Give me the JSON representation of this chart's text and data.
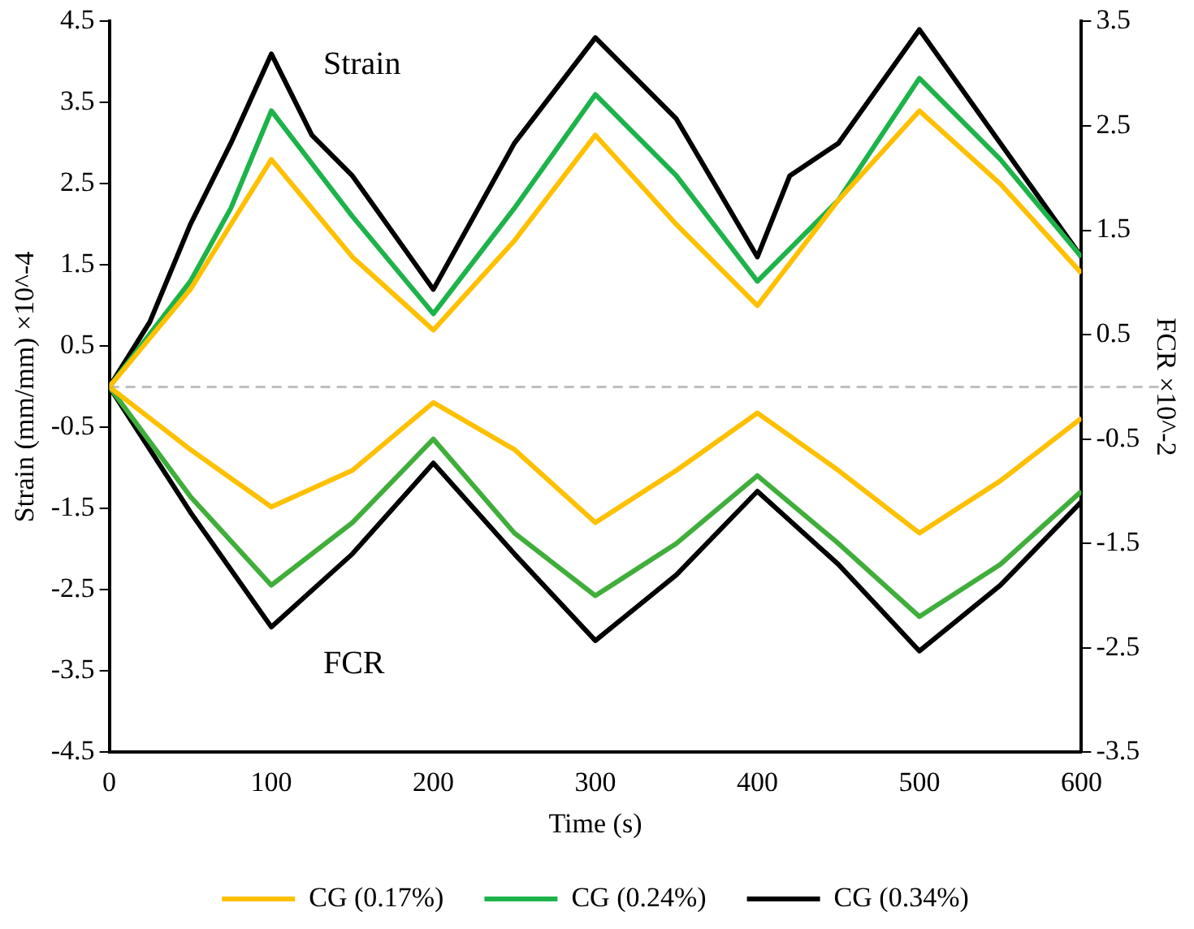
{
  "chart_data": {
    "type": "line",
    "xlabel": "Time (s)",
    "ylabel": "Strain (mm/mm) ×10^-4",
    "y2label": "FCR ×10^-2",
    "xlim": [
      0,
      600
    ],
    "xticks": [
      0,
      100,
      200,
      300,
      400,
      500,
      600
    ],
    "ylim": [
      -4.5,
      4.5
    ],
    "yticks": [
      -4.5,
      -3.5,
      -2.5,
      -1.5,
      -0.5,
      0.5,
      1.5,
      2.5,
      3.5,
      4.5
    ],
    "y2lim": [
      -3.5,
      3.5
    ],
    "y2ticks": [
      -3.5,
      -2.5,
      -1.5,
      -0.5,
      0.5,
      1.5,
      2.5,
      3.5
    ],
    "grid": false,
    "legend": "bottom",
    "marker": "none",
    "line_style": "solid",
    "series": [
      {
        "name": "CG (0.17%)",
        "color": "#ffc000",
        "x": [
          0,
          25,
          50,
          100,
          150,
          200,
          250,
          300,
          350,
          400,
          450,
          500,
          550,
          600
        ],
        "values": [
          0,
          0.6,
          1.2,
          2.8,
          1.6,
          0.7,
          1.8,
          3.1,
          2.0,
          1.0,
          2.3,
          3.4,
          2.5,
          1.4
        ]
      },
      {
        "name": "CG (0.24%)",
        "color": "#1db34a",
        "x": [
          0,
          50,
          75,
          100,
          150,
          200,
          250,
          300,
          350,
          400,
          450,
          500,
          550,
          600
        ],
        "values": [
          0,
          1.3,
          2.2,
          3.4,
          2.1,
          0.9,
          2.2,
          3.6,
          2.6,
          1.3,
          2.3,
          3.8,
          2.8,
          1.6
        ]
      },
      {
        "name": "CG (0.34%)",
        "color": "#000000",
        "x": [
          0,
          25,
          50,
          75,
          100,
          125,
          150,
          200,
          250,
          300,
          350,
          400,
          420,
          450,
          500,
          550,
          600
        ],
        "values": [
          0,
          0.8,
          2.0,
          3.0,
          4.1,
          3.1,
          2.6,
          1.2,
          3.0,
          4.3,
          3.3,
          1.6,
          2.6,
          3.0,
          4.4,
          3.0,
          1.6
        ]
      },
      {
        "color": "#ffc000",
        "axis": "y2",
        "x": [
          0,
          50,
          100,
          150,
          200,
          250,
          300,
          350,
          400,
          450,
          500,
          550,
          600
        ],
        "values": [
          0,
          -0.6,
          -1.15,
          -0.8,
          -0.15,
          -0.6,
          -1.3,
          -0.8,
          -0.25,
          -0.8,
          -1.4,
          -0.9,
          -0.3
        ]
      },
      {
        "color": "#3fae3a",
        "axis": "y2",
        "x": [
          0,
          50,
          100,
          150,
          200,
          250,
          300,
          350,
          400,
          450,
          500,
          550,
          600
        ],
        "values": [
          0,
          -1.05,
          -1.9,
          -1.3,
          -0.5,
          -1.4,
          -2.0,
          -1.5,
          -0.85,
          -1.5,
          -2.2,
          -1.7,
          -1.0
        ]
      },
      {
        "color": "#000000",
        "axis": "y2",
        "x": [
          0,
          50,
          100,
          150,
          200,
          250,
          300,
          350,
          400,
          450,
          500,
          550,
          600
        ],
        "values": [
          0,
          -1.2,
          -2.3,
          -1.6,
          -0.73,
          -1.6,
          -2.43,
          -1.8,
          -1.0,
          -1.7,
          -2.53,
          -1.9,
          -1.1
        ]
      }
    ],
    "ref_lines": [
      {
        "axis": "y",
        "value": 0,
        "color": "#bfbfbf",
        "line_style": "dashed"
      }
    ],
    "annotations": [
      "Strain",
      "FCR"
    ]
  }
}
